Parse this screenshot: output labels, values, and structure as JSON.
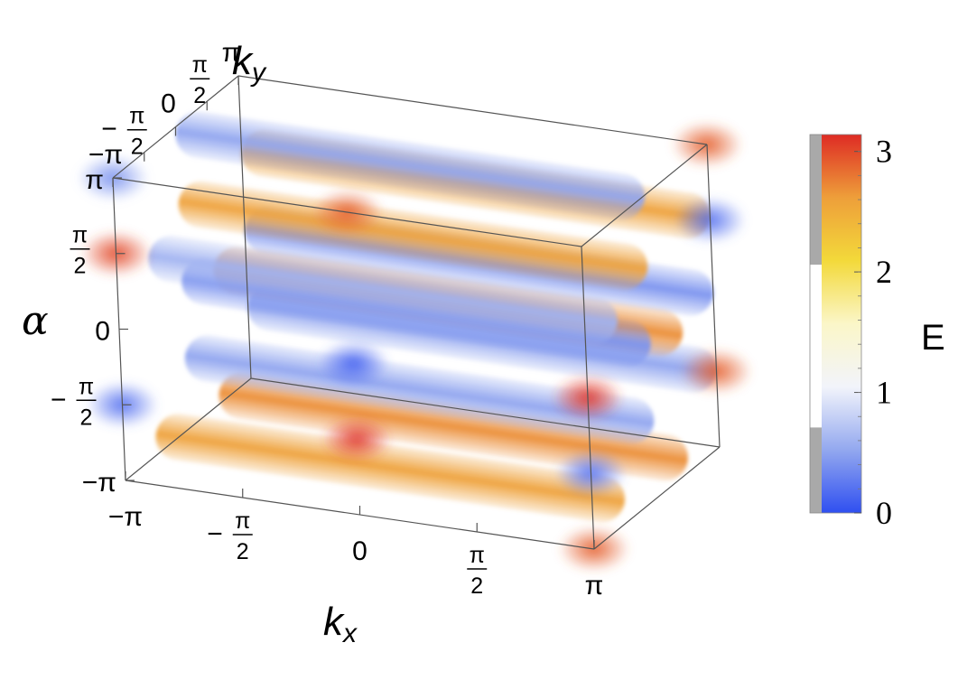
{
  "chart_data": {
    "type": "3d-volume",
    "axes": {
      "x": {
        "label": "k",
        "label_sub": "x",
        "range": [
          -3.1416,
          3.1416
        ],
        "ticks": [
          {
            "v": -3.1416,
            "main": "−π"
          },
          {
            "v": -1.5708,
            "sign": "−",
            "num": "π",
            "den": "2"
          },
          {
            "v": 0,
            "main": "0"
          },
          {
            "v": 1.5708,
            "num": "π",
            "den": "2"
          },
          {
            "v": 3.1416,
            "main": "π"
          }
        ]
      },
      "y": {
        "label": "k",
        "label_sub": "y",
        "range": [
          -3.1416,
          3.1416
        ],
        "ticks": [
          {
            "v": -3.1416,
            "main": "−π"
          },
          {
            "v": -1.5708,
            "sign": "−",
            "num": "π",
            "den": "2"
          },
          {
            "v": 0,
            "main": "0"
          },
          {
            "v": 1.5708,
            "num": "π",
            "den": "2"
          },
          {
            "v": 3.1416,
            "main": "π"
          }
        ]
      },
      "z": {
        "label": "α",
        "range": [
          -3.1416,
          3.1416
        ],
        "ticks": [
          {
            "v": -3.1416,
            "main": "−π"
          },
          {
            "v": -1.5708,
            "sign": "−",
            "num": "π",
            "den": "2"
          },
          {
            "v": 0,
            "main": "0"
          },
          {
            "v": 1.5708,
            "num": "π",
            "den": "2"
          },
          {
            "v": 3.1416,
            "main": "π"
          }
        ]
      }
    },
    "colorbar": {
      "label": "E",
      "range": [
        0,
        3.14
      ],
      "ticks": [
        "0",
        "1",
        "2",
        "3"
      ],
      "colors": [
        "#2f4ff0",
        "#93a8ef",
        "#f2f4fb",
        "#fbf6c8",
        "#f3d93a",
        "#ee9f3a",
        "#de2b24"
      ],
      "opacity_bands": [
        {
          "from": 0,
          "to": 0.71,
          "level": "high"
        },
        {
          "from": 0.71,
          "to": 2.06,
          "level": "transparent"
        },
        {
          "from": 2.06,
          "to": 3.14,
          "level": "high"
        }
      ]
    },
    "tubes": [
      {
        "alpha": 3.05,
        "ky": 0.0,
        "E": 0.5
      },
      {
        "alpha": 1.6,
        "ky": 0.0,
        "E": 2.6
      },
      {
        "alpha": 1.6,
        "ky": 3.14,
        "E": 2.6
      },
      {
        "alpha": 0.0,
        "ky": 0.0,
        "E": 0.4
      },
      {
        "alpha": 0.0,
        "ky": 3.14,
        "E": 0.4
      },
      {
        "alpha": -1.6,
        "ky": 0.0,
        "E": 0.5
      },
      {
        "alpha": -1.6,
        "ky": 3.14,
        "E": 0.5
      },
      {
        "alpha": -0.3,
        "ky": 1.57,
        "E": 2.7
      },
      {
        "alpha": -2.9,
        "ky": 1.57,
        "E": 2.7
      },
      {
        "alpha": -2.7,
        "ky": -1.57,
        "E": 2.6
      },
      {
        "alpha": 1.0,
        "ky": -1.57,
        "E": 0.6
      }
    ],
    "blobs": [
      {
        "kx": -3.14,
        "ky": -3.14,
        "alpha": 1.57,
        "E": 3.0
      },
      {
        "kx": -3.14,
        "ky": -3.14,
        "alpha": -1.57,
        "E": 0.2
      },
      {
        "kx": -3.14,
        "ky": -3.14,
        "alpha": 3.14,
        "E": 0.4
      },
      {
        "kx": 3.14,
        "ky": -3.14,
        "alpha": 0.0,
        "E": 3.1
      },
      {
        "kx": 3.14,
        "ky": -3.14,
        "alpha": -1.57,
        "E": 0.2
      },
      {
        "kx": 0.0,
        "ky": -3.14,
        "alpha": 0.0,
        "E": 0.1
      },
      {
        "kx": 0.0,
        "ky": -3.14,
        "alpha": -1.57,
        "E": 3.1
      },
      {
        "kx": 0.0,
        "ky": -3.14,
        "alpha": 3.14,
        "E": 2.9
      },
      {
        "kx": 3.14,
        "ky": -3.14,
        "alpha": -3.14,
        "E": 2.9
      },
      {
        "kx": 3.14,
        "ky": 3.14,
        "alpha": 1.57,
        "E": 0.2
      },
      {
        "kx": 3.14,
        "ky": 3.14,
        "alpha": -1.57,
        "E": 2.9
      },
      {
        "kx": 3.14,
        "ky": 3.14,
        "alpha": 3.14,
        "E": 2.9
      }
    ],
    "grid": false
  }
}
